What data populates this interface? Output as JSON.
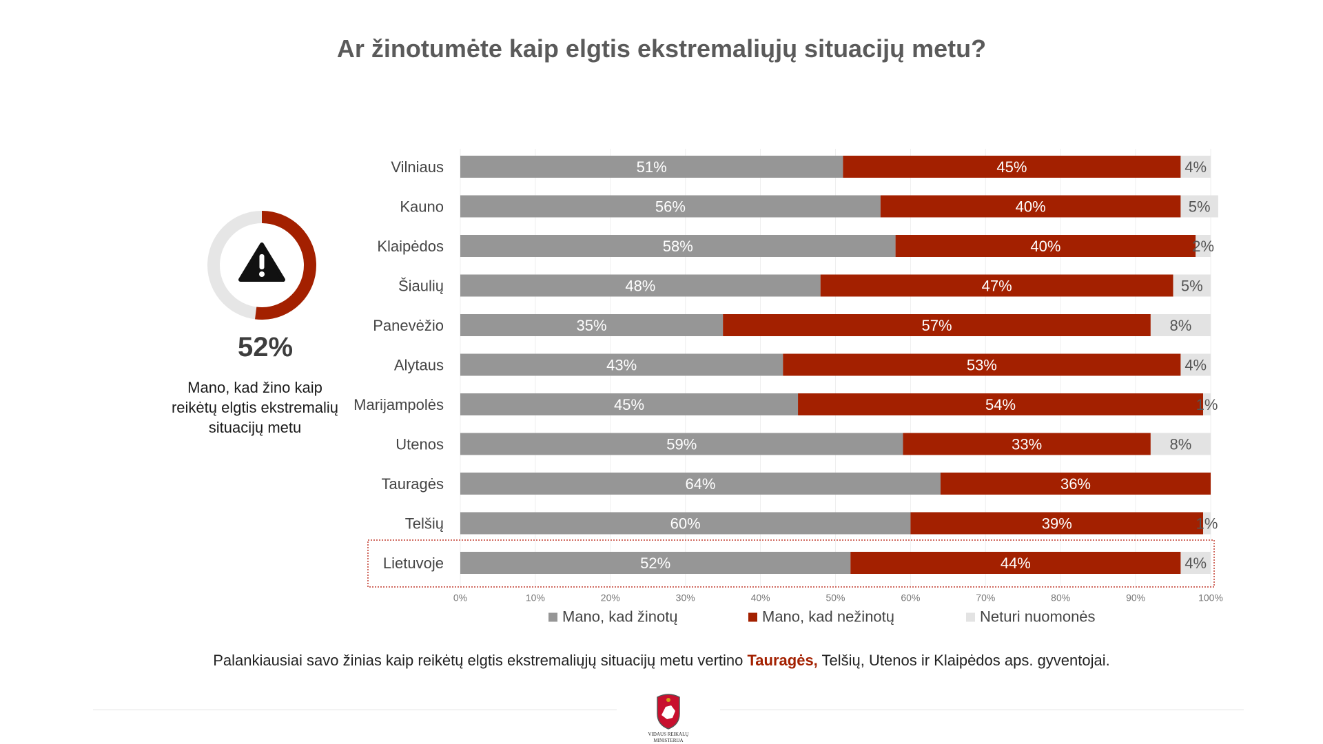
{
  "title": "Ar žinotumėte kaip elgtis ekstremaliųjų situacijų metu?",
  "kpi": {
    "value_text": "52%",
    "value": 52,
    "description": "Mano, kad žino kaip reikėtų elgtis ekstremalių situacijų metu",
    "icon": "warning-icon"
  },
  "colors": {
    "know": "#969696",
    "dont_know": "#a32000",
    "no_opinion": "#e3e3e3",
    "ring_track": "#e6e6e6",
    "highlight_box": "#c0392b"
  },
  "chart_data": {
    "type": "bar",
    "orientation": "horizontal",
    "stacked": true,
    "categories": [
      "Vilniaus",
      "Kauno",
      "Klaipėdos",
      "Šiaulių",
      "Panevėžio",
      "Alytaus",
      "Marijampolės",
      "Utenos",
      "Tauragės",
      "Telšių",
      "Lietuvoje"
    ],
    "series": [
      {
        "name": "Mano, kad žinotų",
        "values": [
          51,
          56,
          58,
          48,
          35,
          43,
          45,
          59,
          64,
          60,
          52
        ]
      },
      {
        "name": "Mano, kad nežinotų",
        "values": [
          45,
          40,
          40,
          47,
          57,
          53,
          54,
          33,
          36,
          39,
          44
        ]
      },
      {
        "name": "Neturi nuomonės",
        "values": [
          4,
          5,
          2,
          5,
          8,
          4,
          1,
          8,
          0,
          1,
          4
        ]
      }
    ],
    "xlim": [
      0,
      100
    ],
    "x_ticks": [
      "0%",
      "10%",
      "20%",
      "30%",
      "40%",
      "50%",
      "60%",
      "70%",
      "80%",
      "90%",
      "100%"
    ],
    "value_suffix": "%",
    "highlighted_category": "Lietuvoje",
    "grid": true,
    "legend_position": "bottom"
  },
  "footnote": {
    "before": "Palankiausiai savo žinias kaip reikėtų elgtis ekstremaliųjų situacijų metu vertino ",
    "highlight": "Tauragės,",
    "after": " Telšių, Utenos ir Klaipėdos aps. gyventojai."
  },
  "logo": {
    "line1": "VIDAUS REIKALŲ",
    "line2": "MINISTERIJA"
  }
}
